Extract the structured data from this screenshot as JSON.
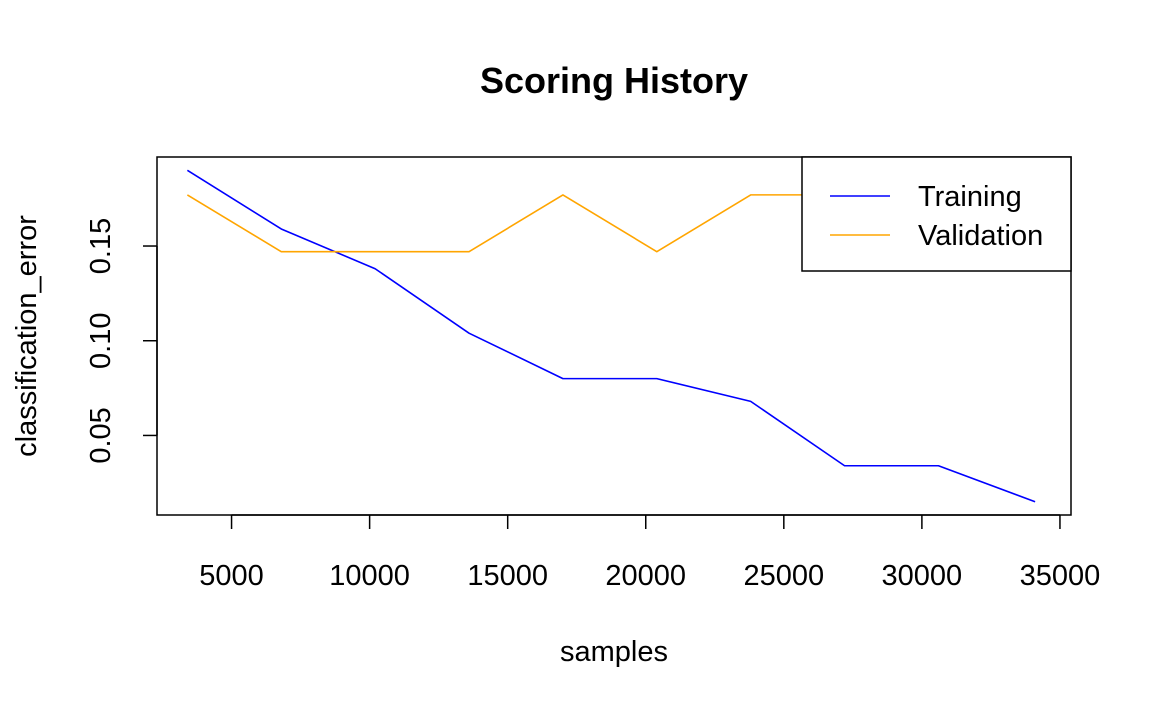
{
  "chart_data": {
    "type": "line",
    "title": "Scoring History",
    "xlabel": "samples",
    "ylabel": "classification_error",
    "xlim": [
      2300,
      35400
    ],
    "ylim": [
      0.008,
      0.197
    ],
    "xticks": [
      5000,
      10000,
      15000,
      20000,
      25000,
      30000,
      35000
    ],
    "yticks": [
      0.05,
      0.1,
      0.15
    ],
    "ytick_labels": [
      "0.05",
      "0.10",
      "0.15"
    ],
    "grid": false,
    "legend_position": "top-right",
    "series": [
      {
        "name": "Training",
        "color": "#0000ff",
        "x": [
          3400,
          6800,
          10200,
          13600,
          17000,
          20400,
          23800,
          27200,
          30600,
          34100
        ],
        "y": [
          0.19,
          0.159,
          0.138,
          0.104,
          0.08,
          0.08,
          0.068,
          0.034,
          0.034,
          0.015
        ]
      },
      {
        "name": "Validation",
        "color": "#ffa500",
        "x": [
          3400,
          6800,
          10200,
          13600,
          17000,
          20400,
          23800,
          27200
        ],
        "y": [
          0.177,
          0.147,
          0.147,
          0.147,
          0.177,
          0.147,
          0.177,
          0.177
        ]
      }
    ]
  }
}
